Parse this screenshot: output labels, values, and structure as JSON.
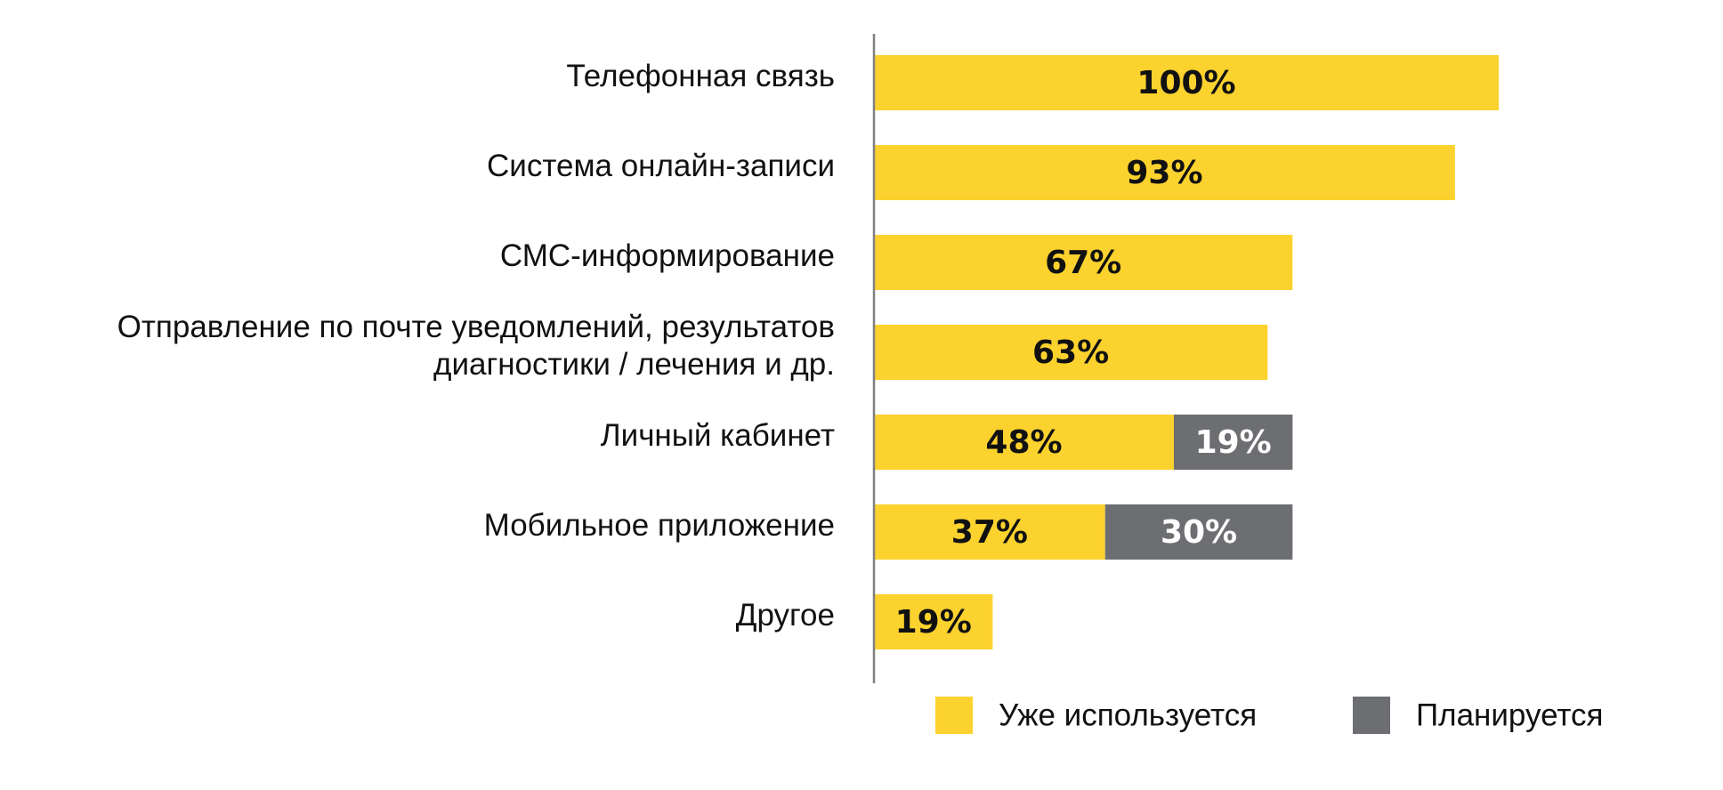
{
  "chart_data": {
    "type": "bar",
    "orientation": "horizontal",
    "stacked": true,
    "xlim": [
      0,
      100
    ],
    "grid": false,
    "legend_position": "bottom",
    "categories": [
      [
        "Телефонная связь"
      ],
      [
        "Система онлайн-записи"
      ],
      [
        "СМС-информирование"
      ],
      [
        "Отправление по почте уведомлений, результатов",
        "диагностики / лечения и др."
      ],
      [
        "Личный кабинет"
      ],
      [
        "Мобильное приложение"
      ],
      [
        "Другое"
      ]
    ],
    "series": [
      {
        "name": "Уже используется",
        "color": "#FCD22E",
        "label_color": "#111111",
        "values": [
          100,
          93,
          67,
          63,
          48,
          37,
          19
        ],
        "labels": [
          "100%",
          "93%",
          "67%",
          "63%",
          "48%",
          "37%",
          "19%"
        ]
      },
      {
        "name": "Планируется",
        "color": "#6D6E71",
        "label_color": "#ffffff",
        "values": [
          0,
          0,
          0,
          0,
          19,
          30,
          0
        ],
        "labels": [
          "",
          "",
          "",
          "",
          "19%",
          "30%",
          ""
        ]
      }
    ],
    "axis_color": "#808080"
  }
}
